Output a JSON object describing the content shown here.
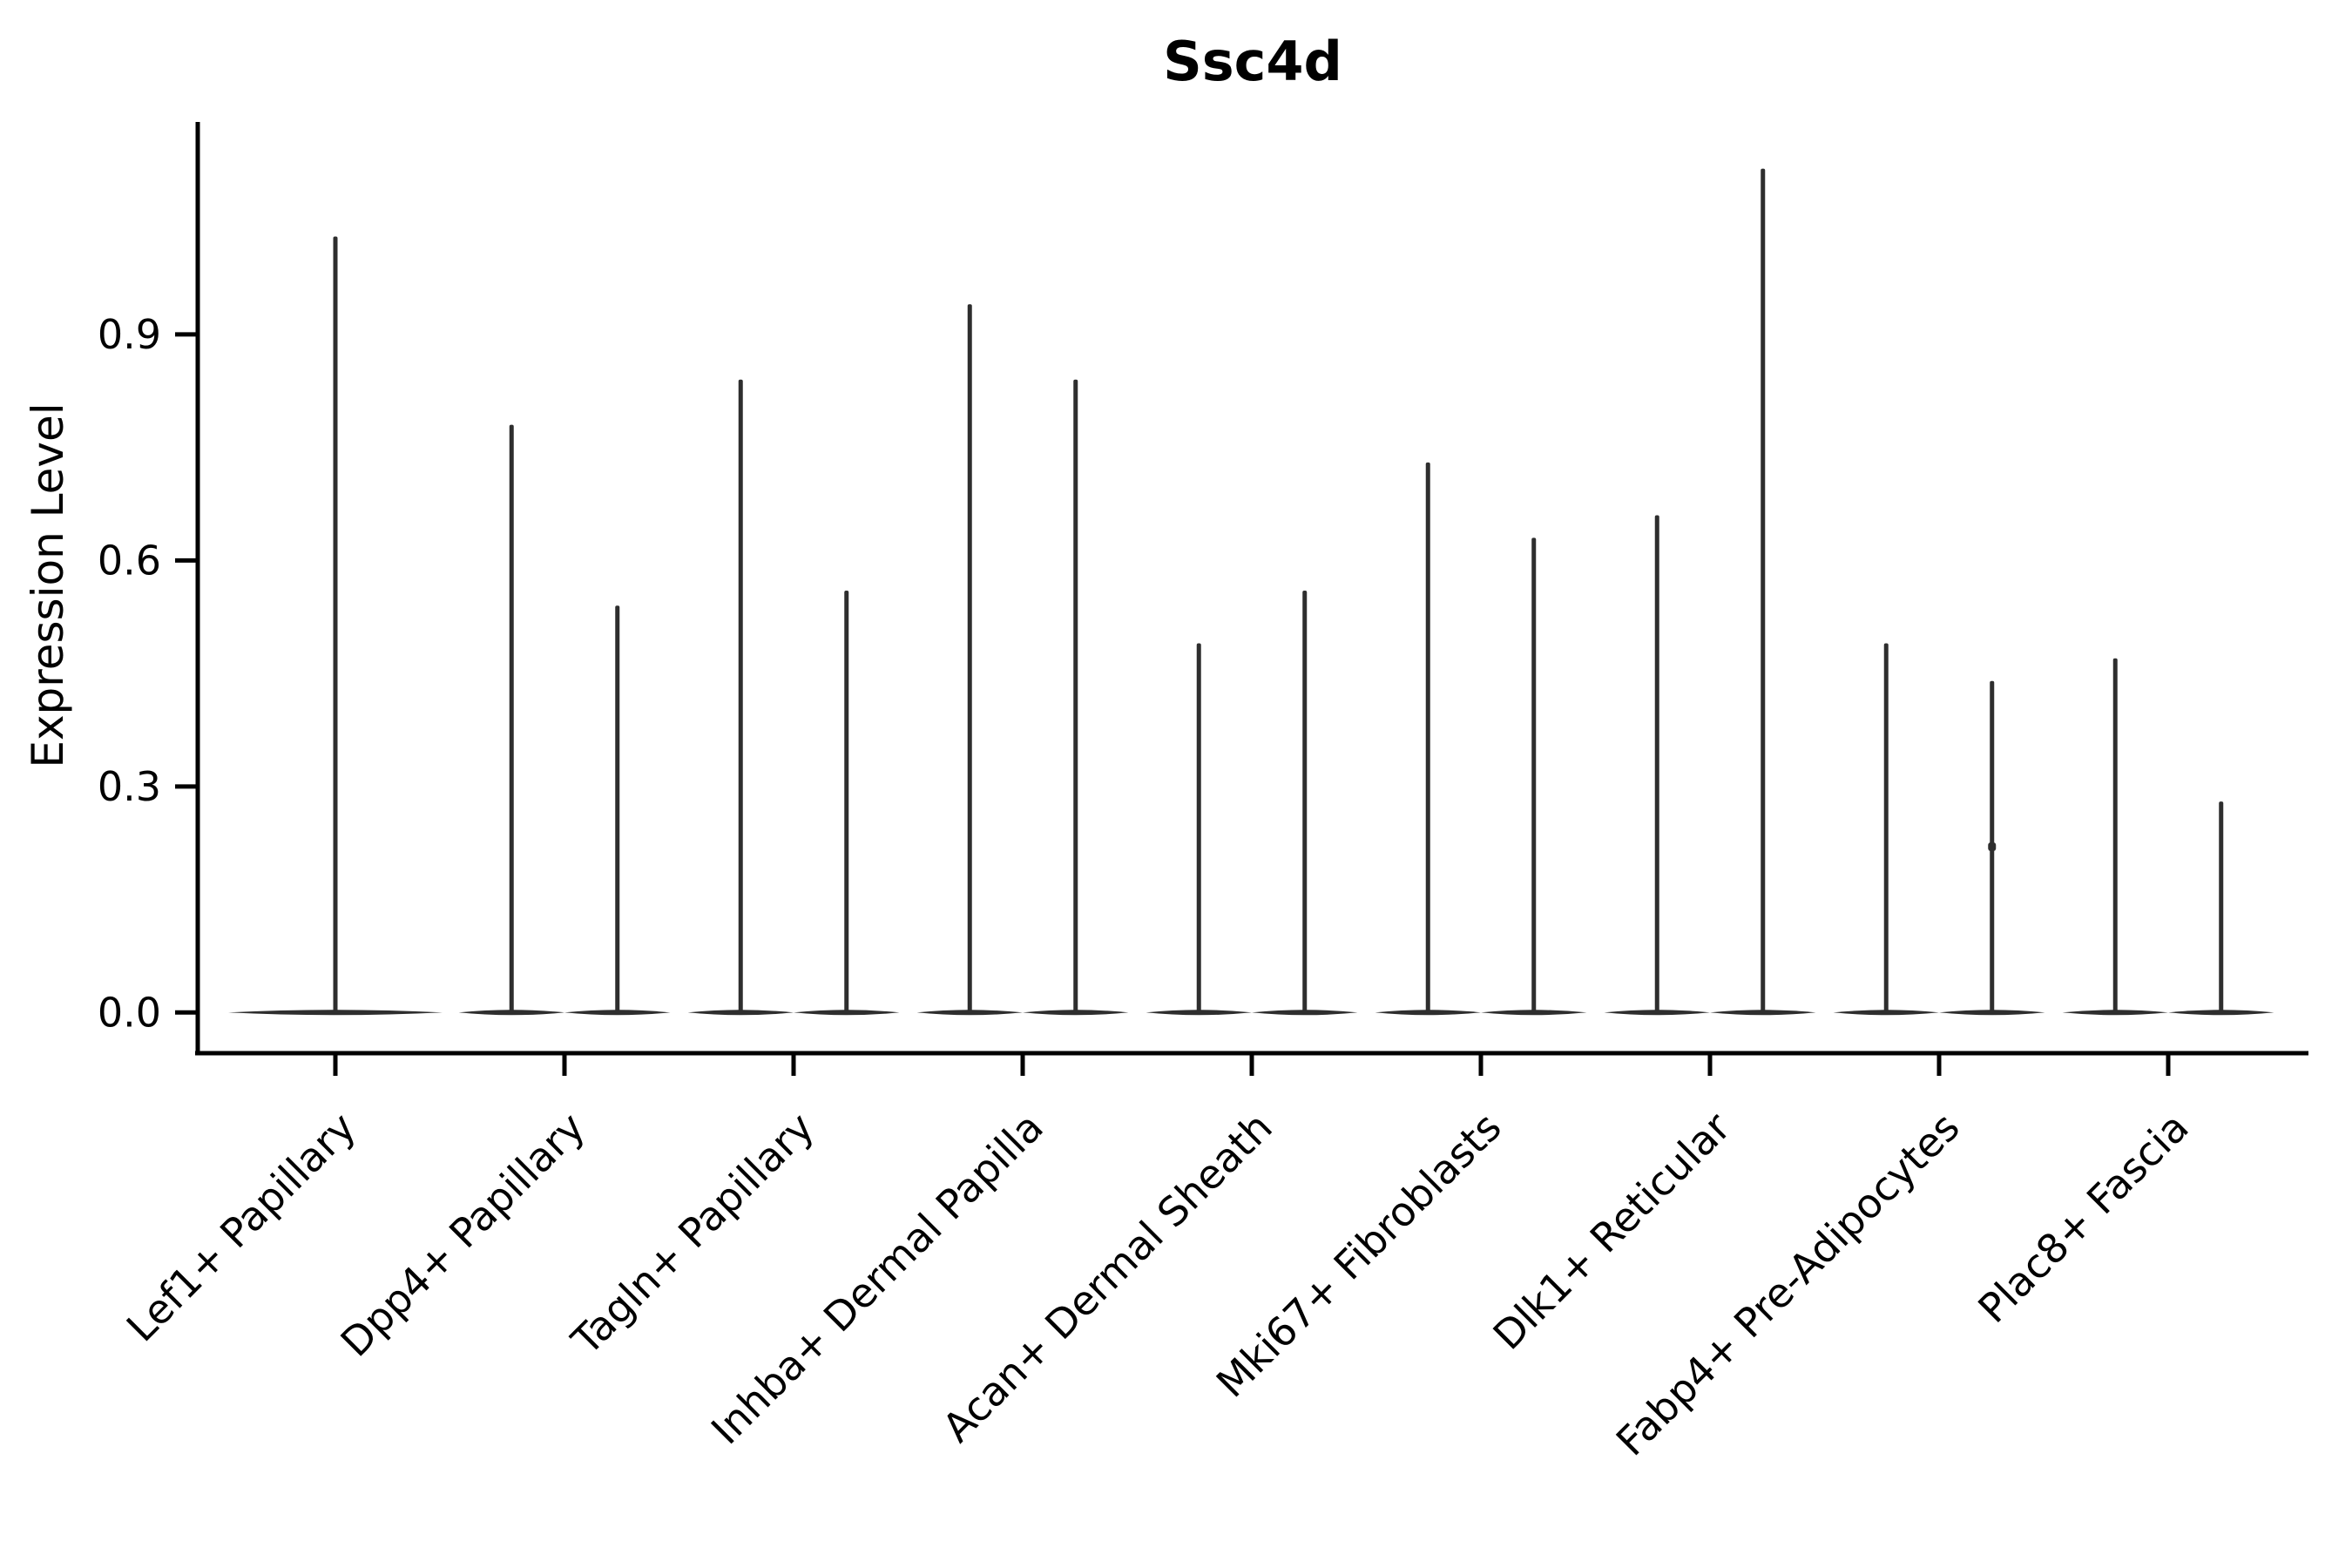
{
  "figure": {
    "background": "#ffffff",
    "violin_color": "#2e2e2e",
    "axis_color": "#000000",
    "text_color": "#000000"
  },
  "chart_data": {
    "type": "violin",
    "title": "Ssc4d",
    "xlabel": "",
    "ylabel": "Expression Level",
    "ylim": [
      -0.054,
      1.182
    ],
    "yticks": [
      0.0,
      0.3,
      0.6,
      0.9
    ],
    "ytick_labels": [
      "0.0",
      "0.3",
      "0.6",
      "0.9"
    ],
    "grid": false,
    "legend": "none",
    "x_label_rotation_deg": 45,
    "categories": [
      "Lef1+ Papillary",
      "Dpp4+ Papillary",
      "Tagln+ Papillary",
      "Inhba+ Dermal Papilla",
      "Acan+ Dermal Sheath",
      "Mki67+ Fibroblasts",
      "Dlk1+ Reticular",
      "Fabp4+ Pre-Adipocytes",
      "Plac8+ Fascia"
    ],
    "series": [
      {
        "category": "Lef1+ Papillary",
        "violin_max": [
          1.03
        ]
      },
      {
        "category": "Dpp4+ Papillary",
        "violin_max": [
          0.78,
          0.54
        ]
      },
      {
        "category": "Tagln+ Papillary",
        "violin_max": [
          0.84,
          0.56
        ]
      },
      {
        "category": "Inhba+ Dermal Papilla",
        "violin_max": [
          0.94,
          0.84
        ]
      },
      {
        "category": "Acan+ Dermal Sheath",
        "violin_max": [
          0.49,
          0.56
        ]
      },
      {
        "category": "Mki67+ Fibroblasts",
        "violin_max": [
          0.73,
          0.63
        ]
      },
      {
        "category": "Dlk1+ Reticular",
        "violin_max": [
          0.66,
          1.12
        ]
      },
      {
        "category": "Fabp4+ Pre-Adipocytes",
        "violin_max": [
          0.49,
          0.44
        ]
      },
      {
        "category": "Plac8+ Fascia",
        "violin_max": [
          0.47,
          0.28
        ]
      }
    ],
    "annotations": {
      "note": "each violin collapses to a flat base at 0 with a thin spike up to its max expression value",
      "bump": {
        "category_index": 7,
        "violin_index": 1,
        "value": 0.22
      }
    }
  }
}
